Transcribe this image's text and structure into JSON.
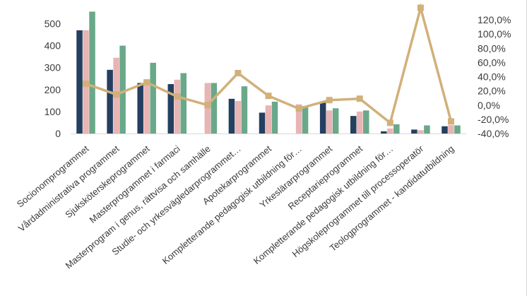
{
  "chart_data": {
    "type": "bar",
    "title": "",
    "xlabel": "",
    "ylabel": "",
    "ylim": [
      0,
      550
    ],
    "y_ticks": [
      0,
      100,
      200,
      300,
      400,
      500
    ],
    "y2lim": [
      -0.4,
      1.3
    ],
    "y2_ticks": [
      -0.4,
      -0.2,
      0,
      0.2,
      0.4,
      0.6,
      0.8,
      1.0,
      1.2
    ],
    "y2_tick_labels": [
      "-40,0%",
      "-20,0%",
      "0,0%",
      "20,0%",
      "40,0%",
      "60,0%",
      "80,0%",
      "100,0%",
      "120,0%"
    ],
    "grid": false,
    "legend": "none",
    "categories": [
      "Socionomprogrammet",
      "Vårdadministrativa programmet",
      "Sjuksköterskeprogrammet",
      "Masterprogrammet i farmaci",
      "Masterprogram i genus, rättvisa och samhälle",
      "Studie- och yrkesvägledarprogrammet…",
      "Apotekarprogrammet",
      "Kompletterande pedagogisk utbildning för…",
      "Yrkeslärarprogrammet",
      "Receptarieprogrammet",
      "Kompletterande pedagogisk utbildning för…",
      "Högskoleprogrammet till processoperatör",
      "Teologprogrammet - kandidatutbildning"
    ],
    "series": [
      {
        "type": "bar",
        "color": "#243f60",
        "values": [
          470,
          290,
          230,
          225,
          0,
          158,
          95,
          0,
          140,
          80,
          10,
          18,
          33
        ]
      },
      {
        "type": "bar",
        "color": "#e8b4b4",
        "values": [
          470,
          345,
          240,
          245,
          230,
          148,
          128,
          133,
          105,
          100,
          23,
          15,
          38
        ]
      },
      {
        "type": "bar",
        "color": "#6aa88a",
        "values": [
          555,
          400,
          322,
          275,
          230,
          215,
          145,
          125,
          115,
          105,
          42,
          37,
          37
        ]
      },
      {
        "type": "line",
        "axis": "secondary",
        "color": "#d1b07a",
        "values": [
          0.3,
          0.15,
          0.32,
          0.12,
          0.0,
          0.45,
          0.13,
          -0.05,
          0.07,
          0.09,
          -0.25,
          1.37,
          -0.23
        ]
      }
    ]
  }
}
